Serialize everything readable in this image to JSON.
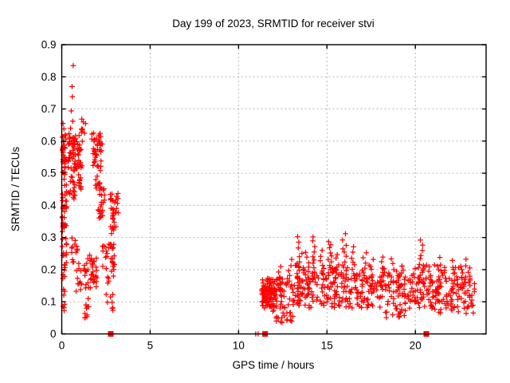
{
  "window": {
    "title": "Day 199 of 2023, SRMTID for receiver stvi"
  },
  "colors": {
    "marker": "#ff0000",
    "grid": "#b4b4b4",
    "border": "#000000",
    "background": "#ffffff",
    "text": "#000000"
  },
  "chart_data": {
    "type": "scatter",
    "marker": "plus",
    "title": "Day 199 of 2023, SRMTID for receiver stvi",
    "xlabel": "GPS time / hours",
    "ylabel": "SRMTID / TECUs",
    "xlim": [
      0,
      24
    ],
    "ylim": [
      0,
      0.9
    ],
    "grid": true,
    "legend": "none",
    "xticks": [
      {
        "v": 0,
        "label": "0"
      },
      {
        "v": 5,
        "label": "5"
      },
      {
        "v": 10,
        "label": "10"
      },
      {
        "v": 15,
        "label": "15"
      },
      {
        "v": 20,
        "label": "20"
      }
    ],
    "yticks": [
      {
        "v": 0.0,
        "label": "0"
      },
      {
        "v": 0.1,
        "label": "0.1"
      },
      {
        "v": 0.2,
        "label": "0.2"
      },
      {
        "v": 0.3,
        "label": "0.3"
      },
      {
        "v": 0.4,
        "label": "0.4"
      },
      {
        "v": 0.5,
        "label": "0.5"
      },
      {
        "v": 0.6,
        "label": "0.6"
      },
      {
        "v": 0.7,
        "label": "0.7"
      },
      {
        "v": 0.8,
        "label": "0.8"
      },
      {
        "v": 0.9,
        "label": "0.9"
      }
    ],
    "seed": 199,
    "clusters": [
      {
        "x": [
          0.02,
          0.28
        ],
        "y": [
          0.17,
          0.33
        ],
        "n": 20
      },
      {
        "x": [
          0.02,
          0.28
        ],
        "y": [
          0.33,
          0.47
        ],
        "n": 28
      },
      {
        "x": [
          0.02,
          0.25
        ],
        "y": [
          0.48,
          0.62
        ],
        "n": 32
      },
      {
        "x": [
          0.05,
          0.2
        ],
        "y": [
          0.06,
          0.16
        ],
        "n": 7
      },
      {
        "x": [
          0.35,
          0.8
        ],
        "y": [
          0.5,
          0.625
        ],
        "n": 45
      },
      {
        "x": [
          0.45,
          0.78
        ],
        "y": [
          0.42,
          0.5
        ],
        "n": 16
      },
      {
        "x": [
          0.55,
          0.9
        ],
        "y": [
          0.22,
          0.3
        ],
        "n": 14
      },
      {
        "x": [
          0.8,
          1.12
        ],
        "y": [
          0.13,
          0.22
        ],
        "n": 12
      },
      {
        "x": [
          0.85,
          1.18
        ],
        "y": [
          0.5,
          0.6
        ],
        "n": 22
      },
      {
        "x": [
          0.9,
          1.35
        ],
        "y": [
          0.6,
          0.672
        ],
        "n": 10
      },
      {
        "x": [
          0.95,
          1.25
        ],
        "y": [
          0.42,
          0.5
        ],
        "n": 10
      },
      {
        "x": [
          1.25,
          2.0
        ],
        "y": [
          0.14,
          0.245
        ],
        "n": 40
      },
      {
        "x": [
          1.3,
          1.62
        ],
        "y": [
          0.045,
          0.11
        ],
        "n": 10
      },
      {
        "x": [
          1.7,
          2.3
        ],
        "y": [
          0.52,
          0.625
        ],
        "n": 40
      },
      {
        "x": [
          1.9,
          2.25
        ],
        "y": [
          0.43,
          0.51
        ],
        "n": 10
      },
      {
        "x": [
          2.05,
          2.45
        ],
        "y": [
          0.36,
          0.46
        ],
        "n": 22
      },
      {
        "x": [
          2.7,
          3.2
        ],
        "y": [
          0.35,
          0.445
        ],
        "n": 26
      },
      {
        "x": [
          2.75,
          3.1
        ],
        "y": [
          0.295,
          0.35
        ],
        "n": 8
      },
      {
        "x": [
          2.3,
          3.0
        ],
        "y": [
          0.21,
          0.28
        ],
        "n": 26
      },
      {
        "x": [
          2.5,
          2.95
        ],
        "y": [
          0.07,
          0.205
        ],
        "n": 16
      },
      {
        "x": [
          11.3,
          12.1
        ],
        "y": [
          0.085,
          0.145
        ],
        "n": 60
      },
      {
        "x": [
          11.35,
          23.4
        ],
        "y": [
          0.08,
          0.175
        ],
        "n": 440
      },
      {
        "x": [
          13.2,
          23.2
        ],
        "y": [
          0.17,
          0.215
        ],
        "n": 80
      },
      {
        "x": [
          11.8,
          13.1
        ],
        "y": [
          0.035,
          0.075
        ],
        "n": 22
      },
      {
        "x": [
          18.3,
          19.6
        ],
        "y": [
          0.05,
          0.08
        ],
        "n": 14
      },
      {
        "x": [
          20.8,
          23.3
        ],
        "y": [
          0.06,
          0.09
        ],
        "n": 12
      }
    ],
    "spikes": [
      {
        "x": 12.35,
        "base": 0.14,
        "peak": 0.21,
        "n": 7
      },
      {
        "x": 12.9,
        "base": 0.15,
        "peak": 0.235,
        "n": 7
      },
      {
        "x": 13.45,
        "base": 0.17,
        "peak": 0.3,
        "n": 13
      },
      {
        "x": 13.85,
        "base": 0.17,
        "peak": 0.255,
        "n": 8
      },
      {
        "x": 14.3,
        "base": 0.17,
        "peak": 0.305,
        "n": 13
      },
      {
        "x": 14.75,
        "base": 0.17,
        "peak": 0.26,
        "n": 9
      },
      {
        "x": 15.2,
        "base": 0.18,
        "peak": 0.29,
        "n": 14
      },
      {
        "x": 15.6,
        "base": 0.17,
        "peak": 0.25,
        "n": 8
      },
      {
        "x": 15.95,
        "base": 0.18,
        "peak": 0.31,
        "n": 13
      },
      {
        "x": 16.5,
        "base": 0.17,
        "peak": 0.27,
        "n": 10
      },
      {
        "x": 17.1,
        "base": 0.16,
        "peak": 0.255,
        "n": 9
      },
      {
        "x": 17.55,
        "base": 0.16,
        "peak": 0.23,
        "n": 7
      },
      {
        "x": 18.15,
        "base": 0.16,
        "peak": 0.24,
        "n": 7
      },
      {
        "x": 18.65,
        "base": 0.16,
        "peak": 0.235,
        "n": 7
      },
      {
        "x": 19.3,
        "base": 0.15,
        "peak": 0.215,
        "n": 6
      },
      {
        "x": 20.35,
        "base": 0.16,
        "peak": 0.29,
        "n": 13
      },
      {
        "x": 20.9,
        "base": 0.15,
        "peak": 0.21,
        "n": 6
      },
      {
        "x": 21.35,
        "base": 0.15,
        "peak": 0.235,
        "n": 7
      },
      {
        "x": 22.2,
        "base": 0.15,
        "peak": 0.225,
        "n": 7
      },
      {
        "x": 22.75,
        "base": 0.15,
        "peak": 0.235,
        "n": 7
      }
    ],
    "outlier_points": [
      [
        0.65,
        0.835
      ],
      [
        0.58,
        0.77
      ],
      [
        0.6,
        0.738
      ],
      [
        0.54,
        0.694
      ],
      [
        0.62,
        0.662
      ],
      [
        0.5,
        0.64
      ],
      [
        0.07,
        0.655
      ],
      [
        0.12,
        0.638
      ]
    ],
    "axis_markers": {
      "square_marks_x": [
        2.77,
        11.5,
        20.62
      ],
      "plus_marks_x": [
        10.97,
        11.1
      ]
    }
  }
}
